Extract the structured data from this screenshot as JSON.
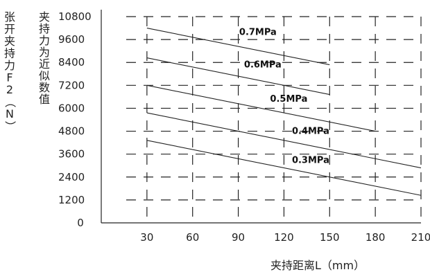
{
  "chart_data": {
    "type": "line",
    "xlabel": "夹持距离L（mm）",
    "ylabel": "夹持力为近似数值",
    "ylabel2": "张开夹持力F2（N）",
    "xlim": [
      0,
      210
    ],
    "ylim": [
      0,
      10800
    ],
    "x_ticks": [
      "30",
      "60",
      "90",
      "120",
      "150",
      "180",
      "210"
    ],
    "y_ticks": [
      "0",
      "1200",
      "2400",
      "3600",
      "4800",
      "6000",
      "7200",
      "8400",
      "9600",
      "10800"
    ],
    "grid": true,
    "series": [
      {
        "name": "0.7MPa",
        "x": [
          30,
          150
        ],
        "y": [
          10200,
          8280
        ]
      },
      {
        "name": "0.6MPa",
        "x": [
          30,
          150
        ],
        "y": [
          8640,
          6720
        ]
      },
      {
        "name": "0.5MPa",
        "x": [
          30,
          180
        ],
        "y": [
          7200,
          4800
        ]
      },
      {
        "name": "0.4MPa",
        "x": [
          30,
          210
        ],
        "y": [
          5760,
          2880
        ]
      },
      {
        "name": "0.3MPa",
        "x": [
          30,
          210
        ],
        "y": [
          4320,
          1440
        ]
      }
    ]
  }
}
